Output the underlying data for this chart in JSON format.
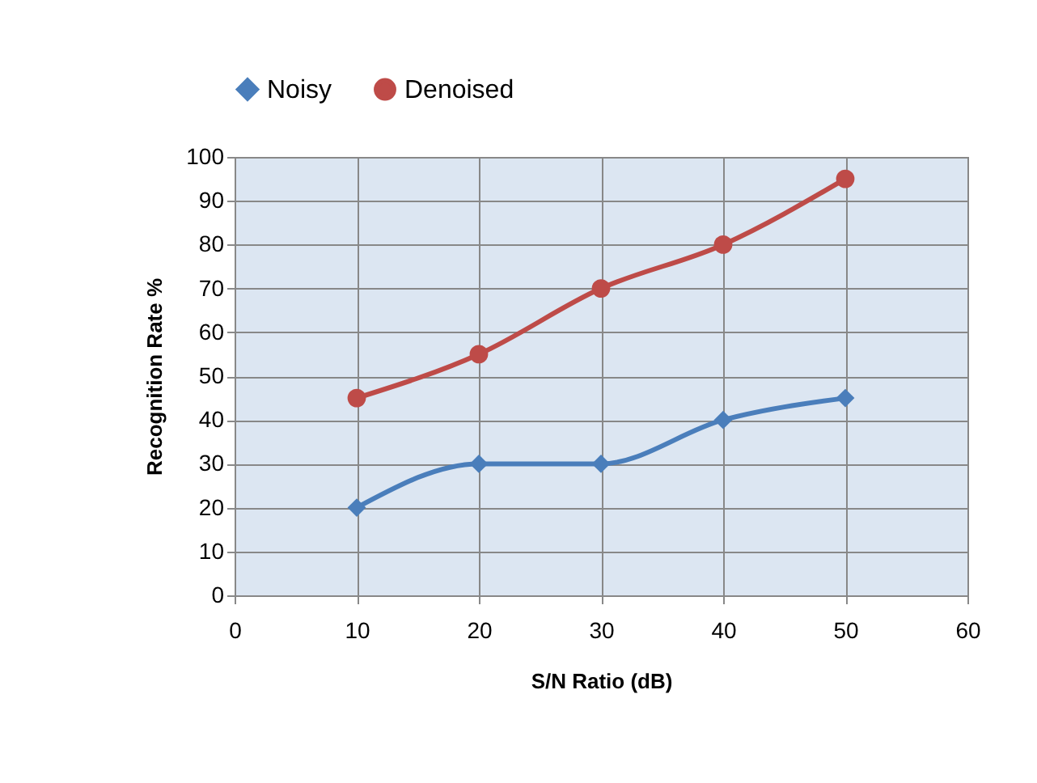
{
  "chart_data": {
    "type": "line",
    "xlabel": "S/N Ratio (dB)",
    "ylabel": "Recognition Rate %",
    "x": [
      10,
      20,
      30,
      40,
      50
    ],
    "series": [
      {
        "name": "Noisy",
        "color": "#4a7ebb",
        "marker": "diamond",
        "values": [
          20,
          30,
          30,
          40,
          45
        ]
      },
      {
        "name": "Denoised",
        "color": "#be4b48",
        "marker": "circle",
        "values": [
          45,
          55,
          70,
          80,
          95
        ]
      }
    ],
    "xlim": [
      0,
      60
    ],
    "xticks": [
      0,
      10,
      20,
      30,
      40,
      50,
      60
    ],
    "ylim": [
      0,
      100
    ],
    "yticks": [
      0,
      10,
      20,
      30,
      40,
      50,
      60,
      70,
      80,
      90,
      100
    ],
    "grid": true,
    "legend": "top",
    "line_style": "solid"
  }
}
